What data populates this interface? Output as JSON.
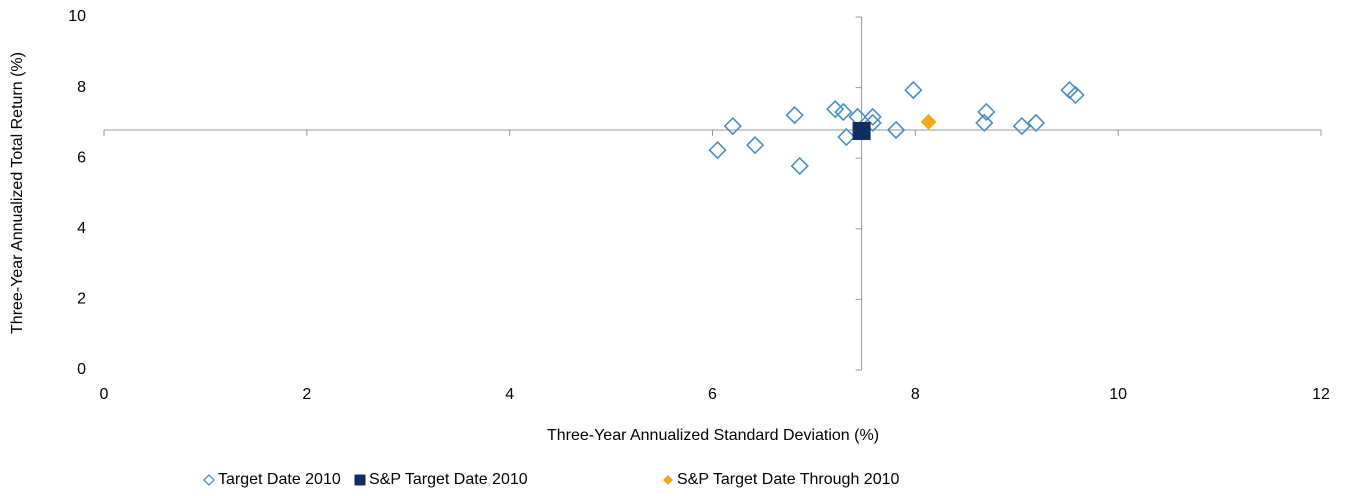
{
  "chart_data": {
    "type": "scatter",
    "xlabel": "Three-Year Annualized Standard Deviation (%)",
    "ylabel": "Three-Year Annualized Total Return (%)",
    "xlim": [
      0,
      12
    ],
    "xticks": [
      0,
      2,
      4,
      6,
      8,
      10,
      12
    ],
    "ylim": [
      0,
      10
    ],
    "yticks": [
      0,
      2,
      4,
      6,
      8,
      10
    ],
    "axis_cross": {
      "x": 7.47,
      "y": 6.8
    },
    "legend": "bottom",
    "series": [
      {
        "name": "Target Date 2010",
        "color": "#4a8fc1",
        "marker": "diamond-open",
        "x": [
          6.05,
          6.2,
          6.42,
          6.81,
          6.86,
          7.21,
          7.29,
          7.32,
          7.43,
          7.58,
          7.58,
          7.81,
          7.98,
          8.7,
          8.68,
          9.05,
          9.19,
          9.52,
          9.58
        ],
        "y": [
          6.23,
          6.91,
          6.37,
          7.22,
          5.78,
          7.39,
          7.31,
          6.6,
          7.17,
          7.17,
          7.0,
          6.8,
          7.93,
          7.31,
          7.0,
          6.91,
          7.0,
          7.93,
          7.79
        ]
      },
      {
        "name": "S&P Target Date 2010",
        "color": "#0f2d5e",
        "marker": "square",
        "x": [
          7.47
        ],
        "y": [
          6.77
        ]
      },
      {
        "name": "S&P Target Date Through 2010",
        "color": "#f5a81e",
        "marker": "diamond",
        "x": [
          8.13
        ],
        "y": [
          7.03
        ]
      }
    ]
  }
}
